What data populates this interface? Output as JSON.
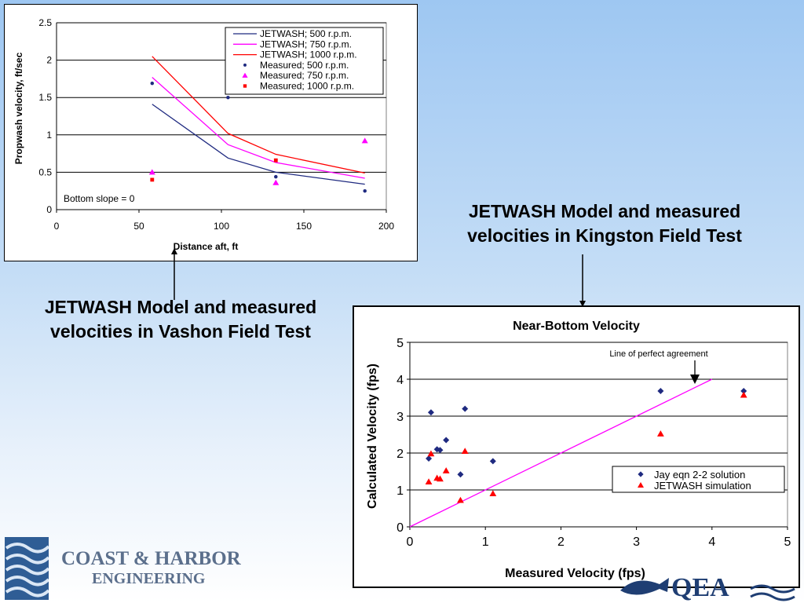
{
  "captions": {
    "vashon_line1": "JETWASH Model and measured",
    "vashon_line2": "velocities in Vashon Field Test",
    "kingston_line1": "JETWASH Model and measured",
    "kingston_line2": "velocities in Kingston Field Test"
  },
  "logo": {
    "line1": "COAST & HARBOR",
    "line2": "ENGINEERING"
  },
  "qea_logo": {
    "text": "QEA"
  },
  "chart_data": [
    {
      "type": "line",
      "title": "",
      "xlabel": "Distance aft, ft",
      "ylabel": "Propwash velocity, ft/sec",
      "xlim": [
        0,
        200
      ],
      "ylim": [
        0,
        2.5
      ],
      "xticks": [
        0,
        50,
        100,
        150,
        200
      ],
      "yticks": [
        0,
        0.5,
        1,
        1.5,
        2,
        2.5
      ],
      "xtick_labels": [
        "0",
        "50",
        "100",
        "150",
        "200"
      ],
      "ytick_labels": [
        "0",
        "0.5",
        "1",
        "1.5",
        "2",
        "2.5"
      ],
      "grid": "horizontal",
      "legend_position": "top-right",
      "annotation": "Bottom slope = 0",
      "series": [
        {
          "name": "JETWASH; 500 r.p.m.",
          "kind": "line",
          "color": "#1f2a80",
          "x": [
            58,
            104,
            133,
            187
          ],
          "y": [
            1.41,
            0.69,
            0.5,
            0.34
          ]
        },
        {
          "name": "JETWASH; 750 r.p.m.",
          "kind": "line",
          "color": "#ff00ff",
          "x": [
            58,
            104,
            133,
            187
          ],
          "y": [
            1.77,
            0.87,
            0.63,
            0.42
          ]
        },
        {
          "name": "JETWASH; 1000 r.p.m.",
          "kind": "line",
          "color": "#ff0000",
          "x": [
            58,
            104,
            133,
            187
          ],
          "y": [
            2.05,
            1.02,
            0.74,
            0.49
          ]
        },
        {
          "name": "Measured; 500 r.p.m.",
          "kind": "scatter",
          "marker": "dot",
          "color": "#1f2a80",
          "x": [
            58,
            104,
            133,
            187
          ],
          "y": [
            1.69,
            1.5,
            0.44,
            0.25
          ]
        },
        {
          "name": "Measured; 750 r.p.m.",
          "kind": "scatter",
          "marker": "triangle",
          "color": "#ff00ff",
          "x": [
            58,
            133,
            187
          ],
          "y": [
            0.5,
            0.36,
            0.92
          ]
        },
        {
          "name": "Measured; 1000 r.p.m.",
          "kind": "scatter",
          "marker": "square",
          "color": "#ff0000",
          "x": [
            58,
            133
          ],
          "y": [
            0.4,
            0.66
          ]
        }
      ]
    },
    {
      "type": "scatter",
      "title": "Near-Bottom Velocity",
      "xlabel": "Measured Velocity (fps)",
      "ylabel": "Calculated Velocity (fps)",
      "xlim": [
        0,
        5
      ],
      "ylim": [
        0,
        5
      ],
      "xticks": [
        0,
        1,
        2,
        3,
        4,
        5
      ],
      "yticks": [
        0,
        1,
        2,
        3,
        4,
        5
      ],
      "xtick_labels": [
        "0",
        "1",
        "2",
        "3",
        "4",
        "5"
      ],
      "ytick_labels": [
        "0",
        "1",
        "2",
        "3",
        "4",
        "5"
      ],
      "grid": "horizontal",
      "legend_position": "center-right",
      "annotation": "Line of perfect agreement",
      "reference_line": {
        "x": [
          0,
          4
        ],
        "y": [
          0,
          4
        ],
        "color": "#ff00ff"
      },
      "series": [
        {
          "name": "Jay eqn 2-2 solution",
          "kind": "scatter",
          "marker": "diamond",
          "color": "#1f2a80",
          "x": [
            0.25,
            0.28,
            0.36,
            0.4,
            0.48,
            0.67,
            0.73,
            1.1,
            3.32,
            4.42
          ],
          "y": [
            1.85,
            3.1,
            2.1,
            2.08,
            2.35,
            1.42,
            3.2,
            1.78,
            3.68,
            3.68
          ]
        },
        {
          "name": "JETWASH simulation",
          "kind": "scatter",
          "marker": "triangle",
          "color": "#ff0000",
          "x": [
            0.25,
            0.28,
            0.36,
            0.4,
            0.48,
            0.67,
            0.73,
            1.1,
            3.32,
            4.42
          ],
          "y": [
            1.22,
            1.98,
            1.32,
            1.3,
            1.52,
            0.72,
            2.05,
            0.9,
            2.52,
            3.57
          ]
        }
      ]
    }
  ]
}
